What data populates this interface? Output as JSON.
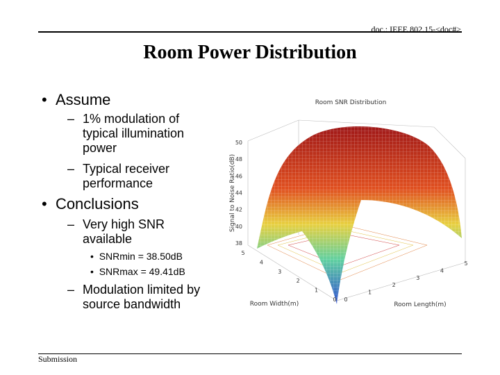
{
  "header": {
    "doc_id": "doc.: IEEE 802.15-<doc#>"
  },
  "title": "Room Power Distribution",
  "bullets": [
    {
      "text": "Assume",
      "items": [
        {
          "lines": [
            "1% modulation of",
            "typical illumination",
            "power"
          ]
        },
        {
          "lines": [
            "Typical receiver",
            "performance"
          ]
        }
      ]
    },
    {
      "text": "Conclusions",
      "items": [
        {
          "lines": [
            "Very high SNR",
            "available"
          ],
          "items": [
            "SNRmin  = 38.50dB",
            "SNRmax = 49.41dB"
          ]
        },
        {
          "lines": [
            "Modulation limited by",
            "source bandwidth"
          ]
        }
      ]
    }
  ],
  "figure": {
    "title": "Room SNR Distribution",
    "z_label": "Signal to Noise Ratio(dB)",
    "x_label": "Room Width(m)",
    "y_label": "Room Length(m)",
    "z_ticks": [
      "50",
      "48",
      "46",
      "44",
      "42",
      "40",
      "38"
    ],
    "x_ticks": [
      "0",
      "1",
      "2",
      "3",
      "4",
      "5"
    ],
    "y_ticks": [
      "0",
      "1",
      "2",
      "3",
      "4",
      "5"
    ]
  },
  "footer": "Submission"
}
